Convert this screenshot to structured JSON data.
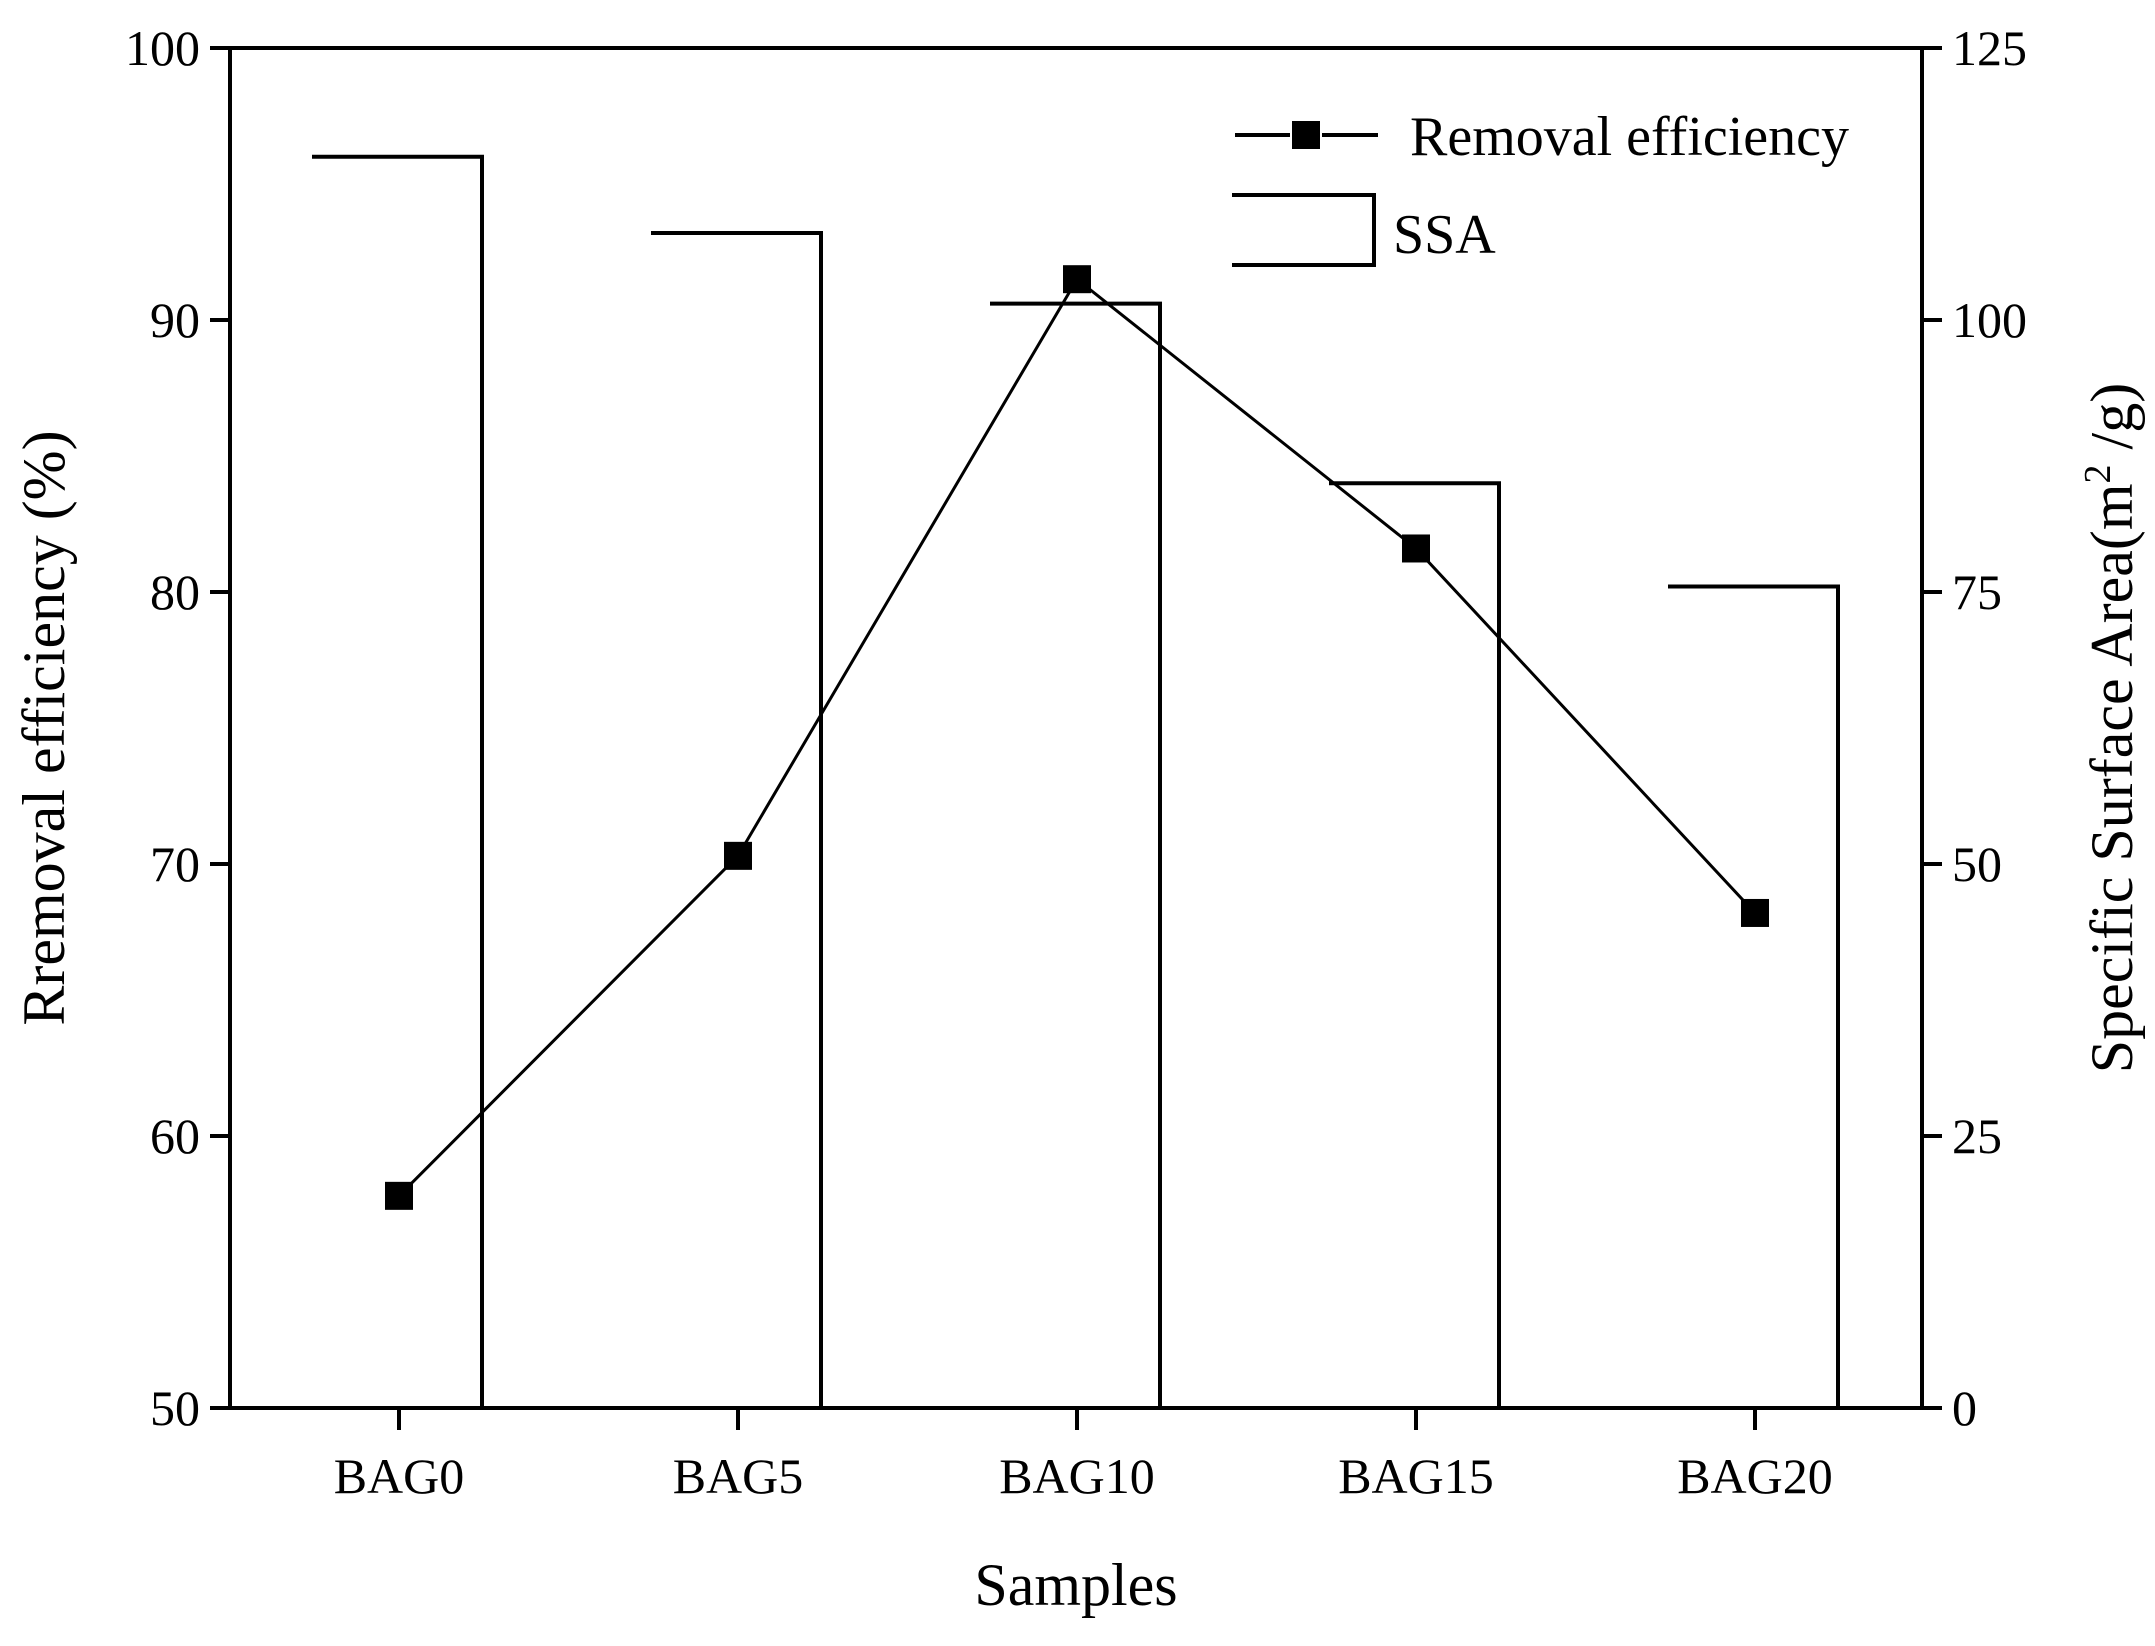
{
  "chart_data": {
    "type": "bar+line",
    "categories": [
      "BAG0",
      "BAG5",
      "BAG10",
      "BAG15",
      "BAG20"
    ],
    "series": [
      {
        "name": "Removal efficiency",
        "type": "line",
        "axis": "left",
        "marker": "square",
        "values": [
          57.8,
          70.3,
          91.5,
          81.6,
          68.2
        ]
      },
      {
        "name": "SSA",
        "type": "bar",
        "axis": "right",
        "values": [
          115,
          108,
          101.5,
          85,
          75.5
        ]
      }
    ],
    "xlabel": "Samples",
    "ylabel_left": "Rremoval efficiency (%)",
    "ylabel_right_prefix": "Specific Surface Area(m",
    "ylabel_right_sup": "2",
    "ylabel_right_suffix": " /g)",
    "ylim_left": [
      50,
      100
    ],
    "yticks_left": [
      "50",
      "60",
      "70",
      "80",
      "90",
      "100"
    ],
    "ylim_right": [
      0,
      125
    ],
    "yticks_right": [
      "0",
      "25",
      "50",
      "75",
      "100",
      "125"
    ],
    "grid": false,
    "legend_position": "top-right",
    "colors": {
      "line": "#000000",
      "bar": "#000000",
      "background": "#ffffff"
    }
  }
}
